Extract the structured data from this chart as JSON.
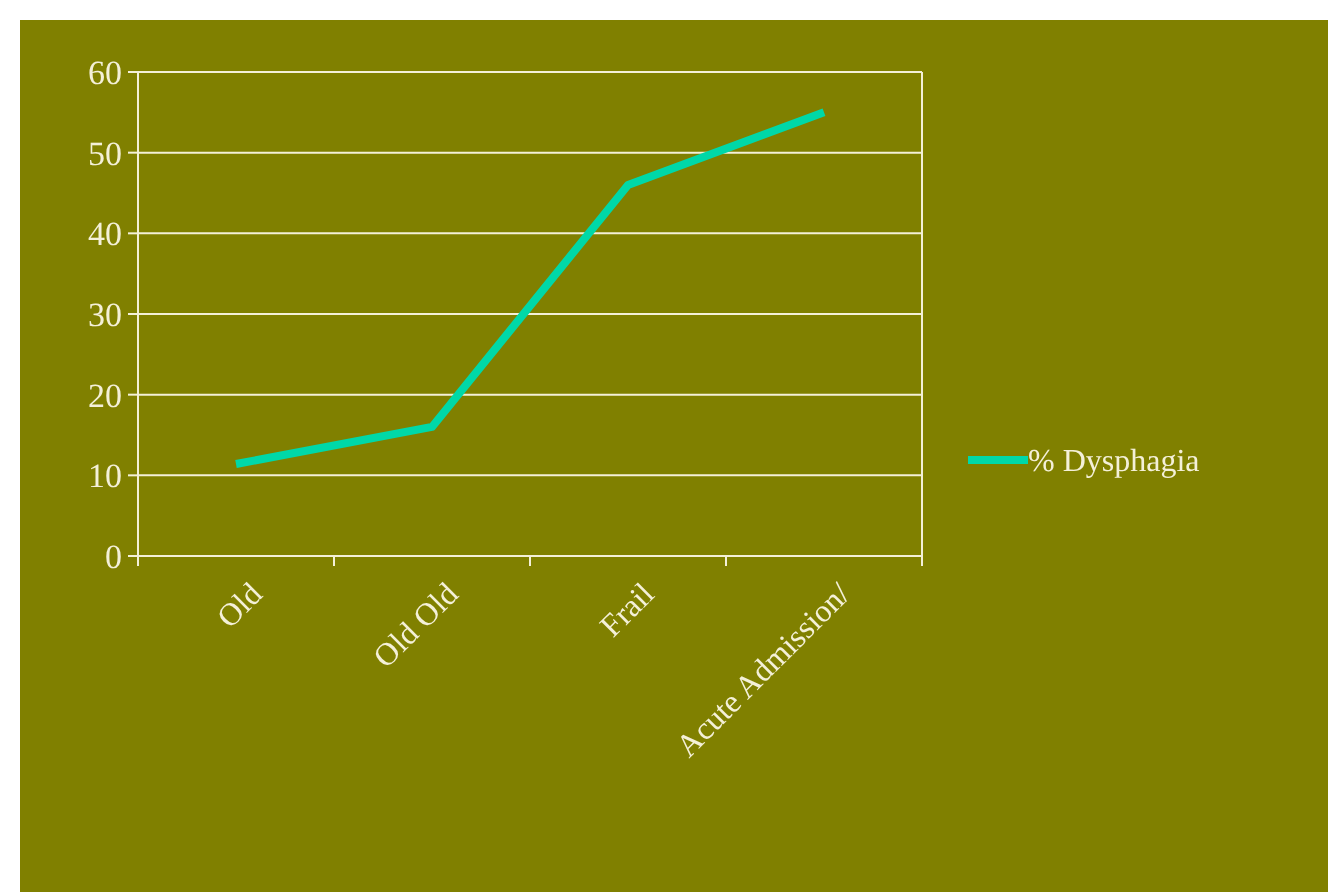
{
  "chart_data": {
    "type": "line",
    "categories": [
      "Old",
      "Old Old",
      "Frail",
      "Acute Admission/"
    ],
    "series": [
      {
        "name": "% Dysphagia",
        "color": "#00d8a8",
        "values": [
          11.4,
          16,
          46,
          55
        ]
      }
    ],
    "ylim": [
      0,
      60
    ],
    "yticks": [
      0,
      10,
      20,
      30,
      40,
      50,
      60
    ],
    "grid": "y",
    "legend": "right",
    "marker": "none",
    "line_style": "solid"
  }
}
